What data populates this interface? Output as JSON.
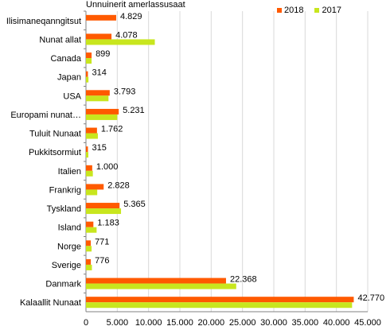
{
  "colors": {
    "2018": "#ff5a00",
    "2017": "#c8e61e",
    "grid": "#d9d9d9",
    "axis": "#808080"
  },
  "chart_data": {
    "type": "bar",
    "orientation": "horizontal",
    "unit_label": "Unnuinerit amerlassusaat",
    "categories": [
      "Ilisimaneqanngitsut",
      "Nunat allat",
      "Canada",
      "Japan",
      "USA",
      "Europami nunat…",
      "Tuluit Nunaat",
      "Pukkitsormiut",
      "Italien",
      "Frankrig",
      "Tyskland",
      "Island",
      "Norge",
      "Sverige",
      "Danmark",
      "Kalaallit Nunaat"
    ],
    "series": [
      {
        "name": "2018",
        "color": "#ff5a00",
        "values": [
          4829,
          4078,
          899,
          314,
          3793,
          5231,
          1762,
          315,
          1000,
          2828,
          5365,
          1183,
          771,
          776,
          22368,
          42770
        ],
        "labels": [
          "4.829",
          "4.078",
          "899",
          "314",
          "3.793",
          "5.231",
          "1.762",
          "315",
          "1.000",
          "2.828",
          "5.365",
          "1.183",
          "771",
          "776",
          "22.368",
          "42.770"
        ]
      },
      {
        "name": "2017",
        "color": "#c8e61e",
        "values": [
          0,
          11000,
          900,
          400,
          3600,
          5000,
          1900,
          380,
          1100,
          1800,
          5600,
          1700,
          900,
          950,
          24000,
          42500
        ]
      }
    ],
    "xlim": [
      0,
      45000
    ],
    "xticks": [
      0,
      5000,
      10000,
      15000,
      20000,
      25000,
      30000,
      35000,
      40000,
      45000
    ],
    "xtick_labels": [
      "0",
      "5.000",
      "10.000",
      "15.000",
      "20.000",
      "25.000",
      "30.000",
      "35.000",
      "40.000",
      "45.000"
    ],
    "grid": true,
    "legend": "top-right"
  }
}
